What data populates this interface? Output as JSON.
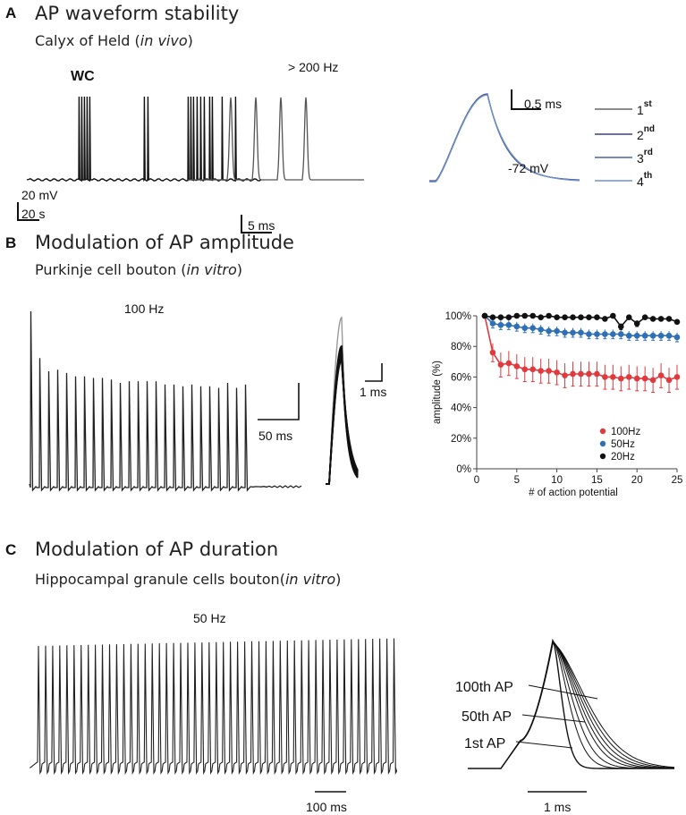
{
  "panels": {
    "a": {
      "letter": "A",
      "title": "AP waveform stability",
      "subtitle_prefix": "Calyx of Held (",
      "subtitle_italic": "in vivo",
      "subtitle_suffix": ")",
      "recording_label": "WC",
      "freq_label": "> 200 Hz",
      "scale_mv": "20 mV",
      "scale_s": "20 s",
      "scale_ms5": "5 ms",
      "scale_ms05": "0.5 ms",
      "vm_label": "-72 mV",
      "legend": [
        {
          "num": "1",
          "sup": "st",
          "color": "#666666"
        },
        {
          "num": "2",
          "sup": "nd",
          "color": "#3a3f8f"
        },
        {
          "num": "3",
          "sup": "rd",
          "color": "#4a63a8"
        },
        {
          "num": "4",
          "sup": "th",
          "color": "#6f93cf"
        }
      ]
    },
    "b": {
      "letter": "B",
      "title": "Modulation of AP amplitude",
      "subtitle_prefix": "Purkinje cell bouton (",
      "subtitle_italic": "in vitro",
      "subtitle_suffix": ")",
      "freq_label": "100 Hz",
      "scale_ms50": "50 ms",
      "scale_ms1": "1 ms"
    },
    "c": {
      "letter": "C",
      "title": "Modulation of AP duration",
      "subtitle_prefix": "Hippocampal granule cells bouton(",
      "subtitle_italic": "in vitro",
      "subtitle_suffix": ")",
      "freq_label": "50 Hz",
      "scale_ms100": "100 ms",
      "scale_ms1": "1 ms",
      "ap_labels": [
        "100th AP",
        "50th AP",
        "1st AP"
      ]
    }
  },
  "chart_data": {
    "type": "line",
    "xlabel": "# of action potential",
    "ylabel": "amplitude (%)",
    "xlim": [
      0,
      25
    ],
    "ylim": [
      0,
      100
    ],
    "xticks": [
      0,
      5,
      10,
      15,
      20,
      25
    ],
    "yticks": [
      0,
      20,
      40,
      60,
      80,
      100
    ],
    "ytick_labels": [
      "0%",
      "20%",
      "40%",
      "60%",
      "80%",
      "100%"
    ],
    "legend_position": "bottom-right",
    "x": [
      1,
      2,
      3,
      4,
      5,
      6,
      7,
      8,
      9,
      10,
      11,
      12,
      13,
      14,
      15,
      16,
      17,
      18,
      19,
      20,
      21,
      22,
      23,
      24,
      25
    ],
    "series": [
      {
        "name": "100Hz",
        "color": "#e0393e",
        "values": [
          100,
          76,
          68,
          69,
          67,
          65,
          65,
          64,
          64,
          63,
          61,
          62,
          62,
          62,
          62,
          60,
          60,
          59,
          60,
          59,
          59,
          58,
          61,
          58,
          60
        ],
        "error": [
          0,
          6,
          8,
          8,
          8,
          8,
          8,
          8,
          8,
          8,
          8,
          8,
          8,
          8,
          8,
          8,
          8,
          8,
          8,
          8,
          8,
          8,
          8,
          8,
          8
        ]
      },
      {
        "name": "50Hz",
        "color": "#2f6fb5",
        "values": [
          100,
          95,
          94,
          94,
          93,
          92,
          92,
          91,
          90,
          90,
          89,
          89,
          89,
          88,
          88,
          88,
          88,
          88,
          87,
          87,
          87,
          87,
          87,
          87,
          86
        ],
        "error": [
          0,
          3,
          3,
          3,
          3,
          3,
          3,
          3,
          3,
          3,
          3,
          3,
          3,
          3,
          3,
          3,
          3,
          3,
          3,
          3,
          3,
          3,
          3,
          3,
          3
        ]
      },
      {
        "name": "20Hz",
        "color": "#111111",
        "values": [
          100,
          99,
          99,
          99,
          100,
          100,
          100,
          99,
          100,
          99,
          99,
          99,
          99,
          99,
          99,
          98,
          100,
          93,
          99,
          95,
          99,
          98,
          98,
          98,
          96
        ],
        "error": [
          0,
          1,
          1,
          1,
          1,
          1,
          1,
          1,
          1,
          1,
          1,
          1,
          1,
          1,
          1,
          1,
          1,
          2,
          1,
          2,
          1,
          1,
          1,
          1,
          1
        ]
      }
    ]
  }
}
